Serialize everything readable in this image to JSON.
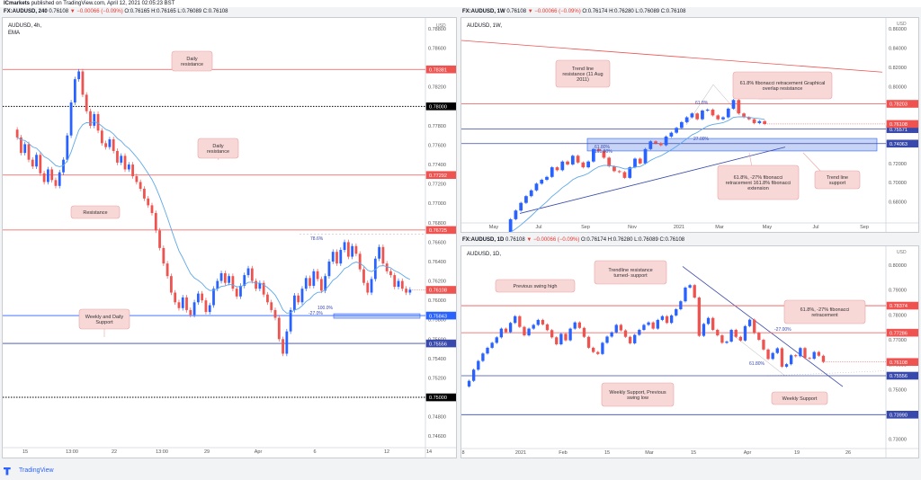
{
  "header": {
    "brand": "ICmarkets",
    "published": "published on TradingView.com, April 12, 2021 02:05:23 BST"
  },
  "footer": {
    "brand": "TradingView"
  },
  "colors": {
    "up": "#2962ff",
    "down": "#ef5350",
    "ema": "#5fa8e8",
    "resistance": "#ef5350",
    "support": "#3949ab",
    "label_bg": "#f8d7d7",
    "label_border": "#e6a3a3"
  },
  "chart_data": [
    {
      "id": "a",
      "type": "candlestick",
      "header_symbol": "FX:AUDUSD, 240",
      "header_ohlc": "O:0.76165 H:0.76165 L:0.76089 C:0.76108",
      "header_price": "0.76108",
      "header_change": "▼ −0.00066 (−0.09%)",
      "symbol_line": "AUDUSD, 4h,",
      "indicator": "EMA",
      "currency": "USD",
      "ylim": [
        0.745,
        0.788
      ],
      "y_ticks": [
        "0.78800",
        "0.78600",
        "0.78400",
        "0.78200",
        "0.78000",
        "0.77800",
        "0.77600",
        "0.77400",
        "0.77200",
        "0.77000",
        "0.76800",
        "0.76600",
        "0.76400",
        "0.76200",
        "0.76000",
        "0.75800",
        "0.75600",
        "0.75400",
        "0.75200",
        "0.75000",
        "0.74800",
        "0.74600"
      ],
      "x_ticks": [
        "15",
        "13:00",
        "22",
        "13:00",
        "29",
        "Apr",
        "6",
        "12",
        "14"
      ],
      "levels": [
        {
          "value": 0.78381,
          "label": "0.78381",
          "color": "#ef5350",
          "style": "solid"
        },
        {
          "value": 0.78,
          "label": "0.78000",
          "color": "#000000",
          "style": "dotted"
        },
        {
          "value": 0.77292,
          "label": "0.77292",
          "color": "#ef5350",
          "style": "solid"
        },
        {
          "value": 0.76725,
          "label": "0.76725",
          "color": "#ef5350",
          "style": "solid"
        },
        {
          "value": 0.75843,
          "label": "0.75843",
          "color": "#2962ff",
          "style": "solid"
        },
        {
          "value": 0.75556,
          "label": "0.75556",
          "color": "#3949ab",
          "style": "solid"
        },
        {
          "value": 0.75,
          "label": "0.75000",
          "color": "#000000",
          "style": "dotted"
        }
      ],
      "current": {
        "value": 0.76108,
        "label": "0.76108"
      },
      "notes": [
        "Daily resistance",
        "Daily resistance",
        "Resistance",
        "Weekly and Daily Support"
      ],
      "fib_labels": [
        "78.6%",
        "100.0%",
        "-27.0%"
      ],
      "closes": [
        0.7768,
        0.7752,
        0.7761,
        0.7745,
        0.7738,
        0.775,
        0.7731,
        0.7722,
        0.7735,
        0.7724,
        0.7718,
        0.7732,
        0.7745,
        0.777,
        0.7804,
        0.7828,
        0.7836,
        0.7812,
        0.7795,
        0.778,
        0.7792,
        0.7775,
        0.7762,
        0.7758,
        0.7766,
        0.7754,
        0.7742,
        0.7749,
        0.7735,
        0.774,
        0.7728,
        0.7722,
        0.7715,
        0.7705,
        0.7698,
        0.769,
        0.7672,
        0.7654,
        0.7638,
        0.7625,
        0.7608,
        0.7598,
        0.7592,
        0.7603,
        0.759,
        0.7585,
        0.7598,
        0.7607,
        0.76,
        0.7588,
        0.7595,
        0.7612,
        0.762,
        0.7628,
        0.7618,
        0.7625,
        0.7612,
        0.7604,
        0.7615,
        0.7626,
        0.7633,
        0.762,
        0.7612,
        0.7618,
        0.7606,
        0.7598,
        0.759,
        0.7582,
        0.756,
        0.7545,
        0.7568,
        0.759,
        0.7605,
        0.7598,
        0.7612,
        0.7623,
        0.7615,
        0.763,
        0.7622,
        0.761,
        0.7625,
        0.764,
        0.765,
        0.7638,
        0.7652,
        0.766,
        0.7645,
        0.7656,
        0.7648,
        0.7632,
        0.7618,
        0.7608,
        0.7622,
        0.7643,
        0.7655,
        0.7638,
        0.763,
        0.7626,
        0.7614,
        0.762,
        0.7612,
        0.7608,
        0.7611
      ]
    },
    {
      "id": "b",
      "type": "candlestick",
      "header_symbol": "FX:AUDUSD, 1W",
      "header_ohlc": "O:0.76174 H:0.76280 L:0.76089 C:0.76108",
      "header_price": "0.76108",
      "header_change": "▼ −0.00066 (−0.09%)",
      "symbol_line": "AUDUSD, 1W,",
      "currency": "USD",
      "ylim": [
        0.66,
        0.862
      ],
      "y_ticks": [
        "0.86000",
        "0.84000",
        "0.82000",
        "0.80000",
        "0.78000",
        "0.76000",
        "0.74000",
        "0.72000",
        "0.70000",
        "0.68000"
      ],
      "x_ticks": [
        "May",
        "Jul",
        "Sep",
        "Nov",
        "2021",
        "Mar",
        "May",
        "Jul",
        "Sep"
      ],
      "levels": [
        {
          "value": 0.78203,
          "label": "0.78203",
          "color": "#ef5350",
          "style": "solid"
        },
        {
          "value": 0.75571,
          "label": "0.75571",
          "color": "#3949ab",
          "style": "solid"
        },
        {
          "value": 0.74063,
          "label": "0.74063",
          "color": "#3949ab",
          "style": "solid"
        }
      ],
      "current": {
        "value": 0.76108,
        "label": "0.76108"
      },
      "notes": [
        "Trend line resistance (11 Aug 2011)",
        "61.8% fibonacci retracement Graphical overlap resistance",
        "61.8%, -27% fibonacci retracement 161.8% fibonacci extension",
        "Trend line support"
      ],
      "fib_labels": [
        "61.8%",
        "27.00%",
        "61.80%",
        "161.80%"
      ],
      "closes": [
        0.646,
        0.662,
        0.671,
        0.679,
        0.686,
        0.692,
        0.699,
        0.703,
        0.706,
        0.716,
        0.713,
        0.722,
        0.719,
        0.728,
        0.721,
        0.716,
        0.722,
        0.735,
        0.733,
        0.726,
        0.717,
        0.712,
        0.711,
        0.705,
        0.716,
        0.725,
        0.72,
        0.735,
        0.743,
        0.741,
        0.739,
        0.748,
        0.752,
        0.757,
        0.763,
        0.768,
        0.772,
        0.766,
        0.775,
        0.776,
        0.77,
        0.766,
        0.768,
        0.777,
        0.786,
        0.772,
        0.768,
        0.766,
        0.762,
        0.764,
        0.761
      ]
    },
    {
      "id": "c",
      "type": "candlestick",
      "header_symbol": "FX:AUDUSD, 1D",
      "header_ohlc": "O:0.76174 H:0.76280 L:0.76089 C:0.76108",
      "header_price": "0.76108",
      "header_change": "▼ −0.00066 (−0.09%)",
      "symbol_line": "AUDUSD, 1D,",
      "currency": "USD",
      "ylim": [
        0.727,
        0.804
      ],
      "y_ticks": [
        "0.80000",
        "0.79000",
        "0.78000",
        "0.77000",
        "0.76000",
        "0.75000",
        "0.74000",
        "0.73000"
      ],
      "x_ticks": [
        "8",
        "2021",
        "Feb",
        "15",
        "Mar",
        "15",
        "Apr",
        "19",
        "26"
      ],
      "levels": [
        {
          "value": 0.78374,
          "label": "0.78374",
          "color": "#ef5350",
          "style": "solid"
        },
        {
          "value": 0.77286,
          "label": "0.77286",
          "color": "#ef5350",
          "style": "solid"
        },
        {
          "value": 0.75556,
          "label": "0.75556",
          "color": "#3949ab",
          "style": "solid"
        },
        {
          "value": 0.7399,
          "label": "0.73990",
          "color": "#3949ab",
          "style": "solid"
        }
      ],
      "current": {
        "value": 0.76108,
        "label": "0.76108"
      },
      "notes": [
        "Previous swing high",
        "Trendline resistance turned- support",
        "61.8%, -27% fibonacci retracement",
        "Weekly Support, Previous swing low",
        "Weekly Support"
      ],
      "fib_labels": [
        "-27.00%",
        "61.80%"
      ],
      "closes": [
        0.7535,
        0.758,
        0.7615,
        0.7645,
        0.7668,
        0.7688,
        0.771,
        0.7745,
        0.7731,
        0.7768,
        0.7795,
        0.7752,
        0.7718,
        0.7745,
        0.776,
        0.778,
        0.7762,
        0.7739,
        0.771,
        0.7682,
        0.7724,
        0.7698,
        0.7745,
        0.777,
        0.7748,
        0.7712,
        0.7668,
        0.7651,
        0.7643,
        0.7688,
        0.7713,
        0.773,
        0.776,
        0.7738,
        0.7712,
        0.7686,
        0.772,
        0.774,
        0.776,
        0.777,
        0.7745,
        0.778,
        0.7795,
        0.7768,
        0.7798,
        0.7823,
        0.7855,
        0.791,
        0.792,
        0.787,
        0.7716,
        0.7764,
        0.7788,
        0.774,
        0.7718,
        0.7688,
        0.7693,
        0.774,
        0.7712,
        0.7697,
        0.7755,
        0.7781,
        0.7727,
        0.77,
        0.7661,
        0.7623,
        0.7647,
        0.7666,
        0.7592,
        0.7602,
        0.7638,
        0.7634,
        0.7667,
        0.7627,
        0.7624,
        0.7651,
        0.7636,
        0.7611
      ]
    }
  ]
}
